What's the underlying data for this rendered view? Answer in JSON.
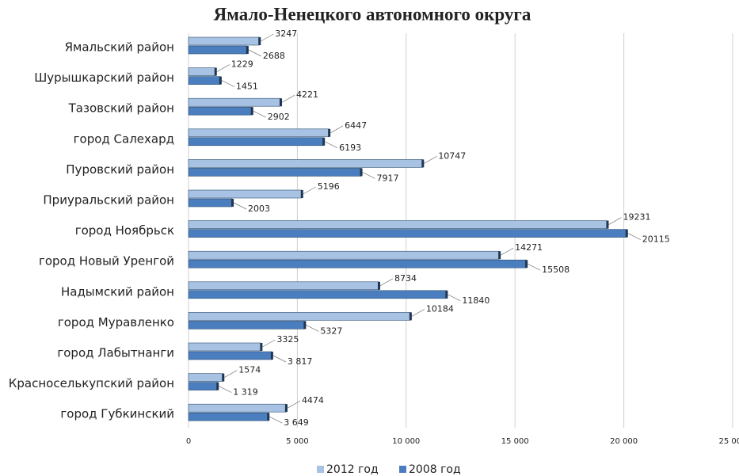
{
  "chart_data": {
    "type": "hbar",
    "title": "Ямало-Ненецкого автономного округа",
    "categories": [
      "Ямальский район",
      "Шурышкарский район",
      "Тазовский район",
      "город Салехард",
      "Пуровский район",
      "Приуральский район",
      "город Ноябрьск",
      "город Новый Уренгой",
      "Надымский район",
      "город Муравленко",
      "город Лабытнанги",
      "Красноселькупский район",
      "город Губкинский"
    ],
    "series": [
      {
        "name": "2012 год",
        "color": "#a7c2e3",
        "values": [
          3247,
          1229,
          4221,
          6447,
          10747,
          5196,
          19231,
          14271,
          8734,
          10184,
          3325,
          1574,
          4474
        ]
      },
      {
        "name": "2008 год",
        "color": "#4a7ebf",
        "values": [
          2688,
          1451,
          2902,
          6193,
          7917,
          2003,
          20115,
          15508,
          11840,
          5327,
          3817,
          1319,
          3649
        ],
        "value_labels": [
          "2688",
          "1451",
          "2902",
          "6193",
          "7917",
          "2003",
          "20115",
          "15508",
          "11840",
          "5327",
          "3 817",
          "1 319",
          "3 649"
        ]
      }
    ],
    "xlim": [
      0,
      25000
    ],
    "xticks": [
      0,
      {
        "value": 5000,
        "label": "5 000"
      },
      {
        "value": 10000,
        "label": "10 000"
      },
      {
        "value": 15000,
        "label": "15 000"
      },
      {
        "value": 20000,
        "label": "20 000"
      },
      {
        "value": 25000,
        "label": "25 000"
      }
    ],
    "grid": true,
    "legend": "bottom"
  }
}
